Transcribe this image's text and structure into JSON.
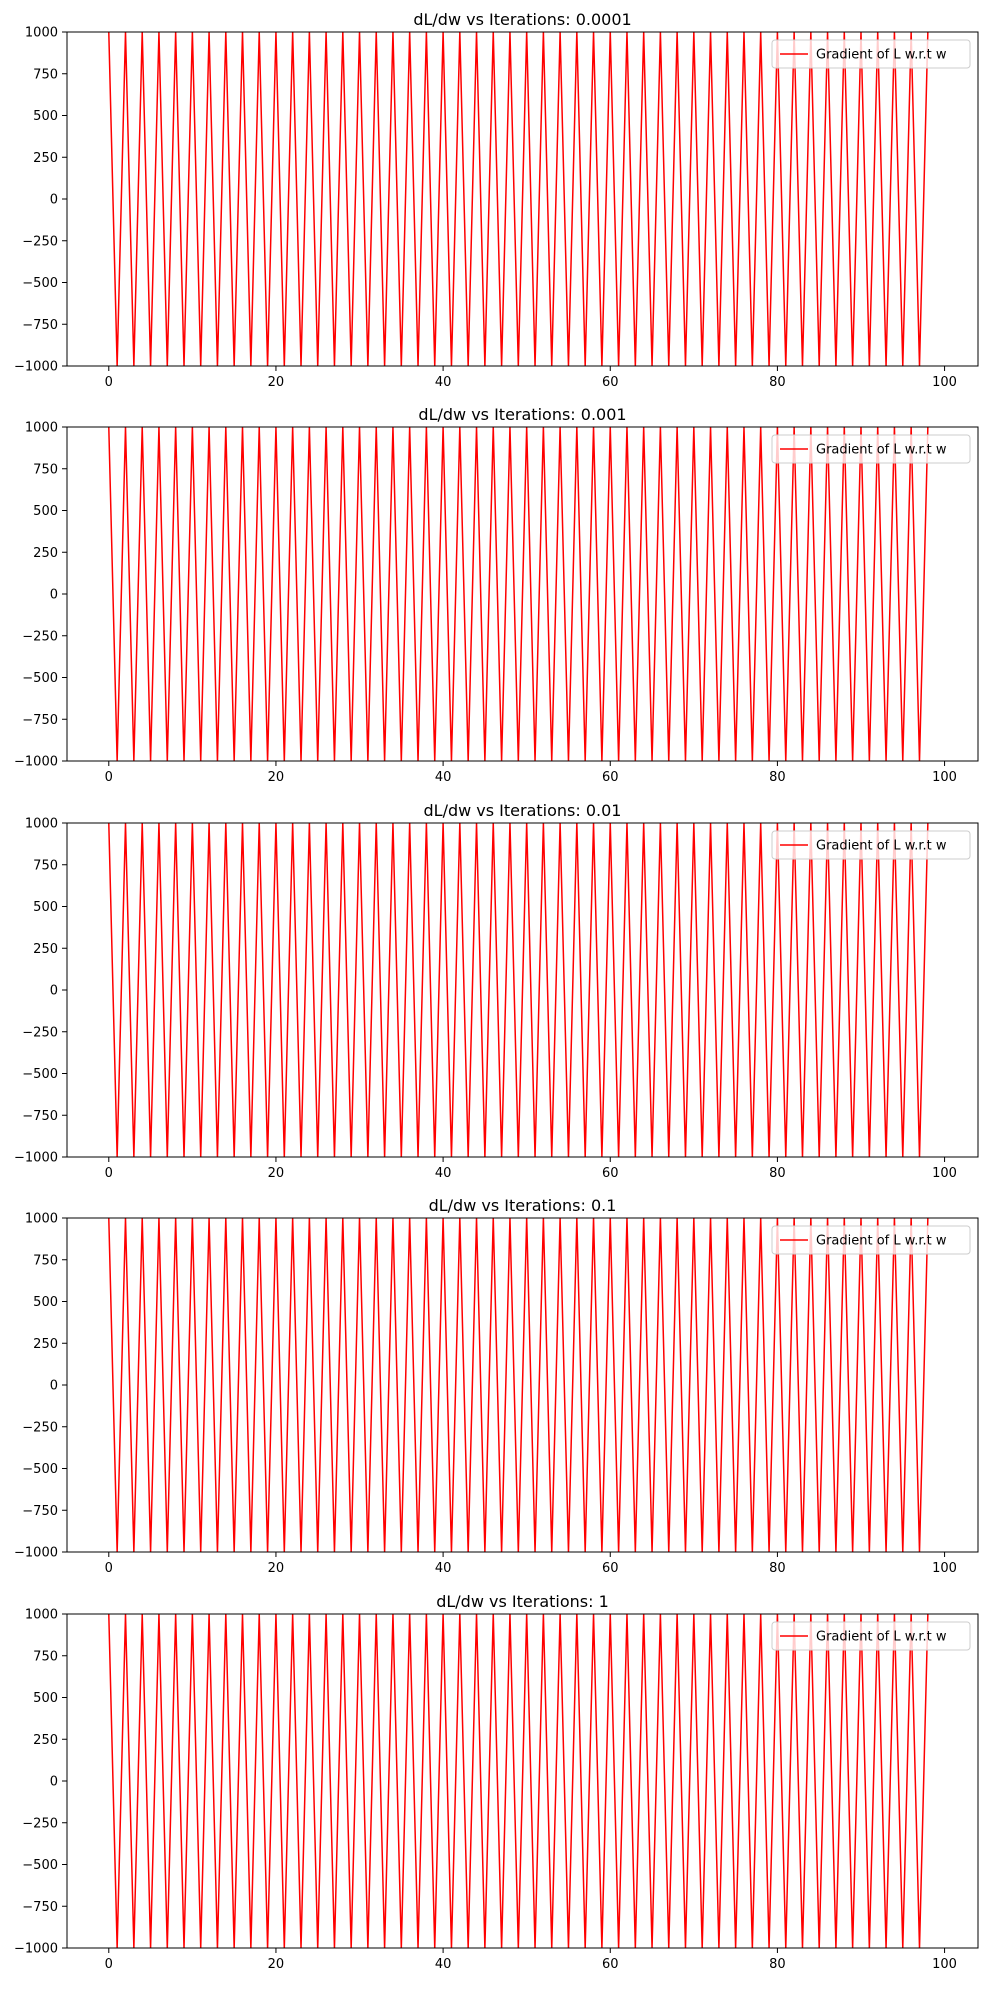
{
  "chart_data": [
    {
      "type": "line",
      "title": "dL/dw vs Iterations: 0.0001",
      "xlabel": "",
      "ylabel": "",
      "xlim": [
        -5,
        104
      ],
      "ylim": [
        -1000,
        1000
      ],
      "xticks": [
        0,
        20,
        40,
        60,
        80,
        100
      ],
      "yticks": [
        1000,
        750,
        500,
        250,
        0,
        -250,
        -500,
        -750,
        -1000
      ],
      "grid": false,
      "legend_position": "top-right",
      "series": [
        {
          "name": "Gradient of L w.r.t w",
          "color": "#ff0000",
          "pattern": "alternating",
          "x_start": 0,
          "x_end": 98,
          "values_even_x": 1000,
          "values_odd_x": -1000,
          "values_clipped_beyond_ylim": true
        }
      ]
    },
    {
      "type": "line",
      "title": "dL/dw vs Iterations: 0.001",
      "xlabel": "",
      "ylabel": "",
      "xlim": [
        -5,
        104
      ],
      "ylim": [
        -1000,
        1000
      ],
      "xticks": [
        0,
        20,
        40,
        60,
        80,
        100
      ],
      "yticks": [
        1000,
        750,
        500,
        250,
        0,
        -250,
        -500,
        -750,
        -1000
      ],
      "grid": false,
      "legend_position": "top-right",
      "series": [
        {
          "name": "Gradient of L w.r.t w",
          "color": "#ff0000",
          "pattern": "alternating",
          "x_start": 0,
          "x_end": 98,
          "values_even_x": 1000,
          "values_odd_x": -1000,
          "values_clipped_beyond_ylim": true
        }
      ]
    },
    {
      "type": "line",
      "title": "dL/dw vs Iterations: 0.01",
      "xlabel": "",
      "ylabel": "",
      "xlim": [
        -5,
        104
      ],
      "ylim": [
        -1000,
        1000
      ],
      "xticks": [
        0,
        20,
        40,
        60,
        80,
        100
      ],
      "yticks": [
        1000,
        750,
        500,
        250,
        0,
        -250,
        -500,
        -750,
        -1000
      ],
      "grid": false,
      "legend_position": "top-right",
      "series": [
        {
          "name": "Gradient of L w.r.t w",
          "color": "#ff0000",
          "pattern": "alternating",
          "x_start": 0,
          "x_end": 98,
          "values_even_x": 1000,
          "values_odd_x": -1000,
          "values_clipped_beyond_ylim": true
        }
      ]
    },
    {
      "type": "line",
      "title": "dL/dw vs Iterations: 0.1",
      "xlabel": "",
      "ylabel": "",
      "xlim": [
        -5,
        104
      ],
      "ylim": [
        -1000,
        1000
      ],
      "xticks": [
        0,
        20,
        40,
        60,
        80,
        100
      ],
      "yticks": [
        1000,
        750,
        500,
        250,
        0,
        -250,
        -500,
        -750,
        -1000
      ],
      "grid": false,
      "legend_position": "top-right",
      "series": [
        {
          "name": "Gradient of L w.r.t w",
          "color": "#ff0000",
          "pattern": "alternating",
          "x_start": 0,
          "x_end": 98,
          "values_even_x": 1000,
          "values_odd_x": -1000,
          "values_clipped_beyond_ylim": true
        }
      ]
    },
    {
      "type": "line",
      "title": "dL/dw vs Iterations: 1",
      "xlabel": "",
      "ylabel": "",
      "xlim": [
        -5,
        104
      ],
      "ylim": [
        -1000,
        1000
      ],
      "xticks": [
        0,
        20,
        40,
        60,
        80,
        100
      ],
      "yticks": [
        1000,
        750,
        500,
        250,
        0,
        -250,
        -500,
        -750,
        -1000
      ],
      "grid": false,
      "legend_position": "top-right",
      "series": [
        {
          "name": "Gradient of L w.r.t w",
          "color": "#ff0000",
          "pattern": "alternating",
          "x_start": 0,
          "x_end": 98,
          "values_even_x": 1000,
          "values_odd_x": -1000,
          "values_clipped_beyond_ylim": true
        }
      ]
    }
  ]
}
